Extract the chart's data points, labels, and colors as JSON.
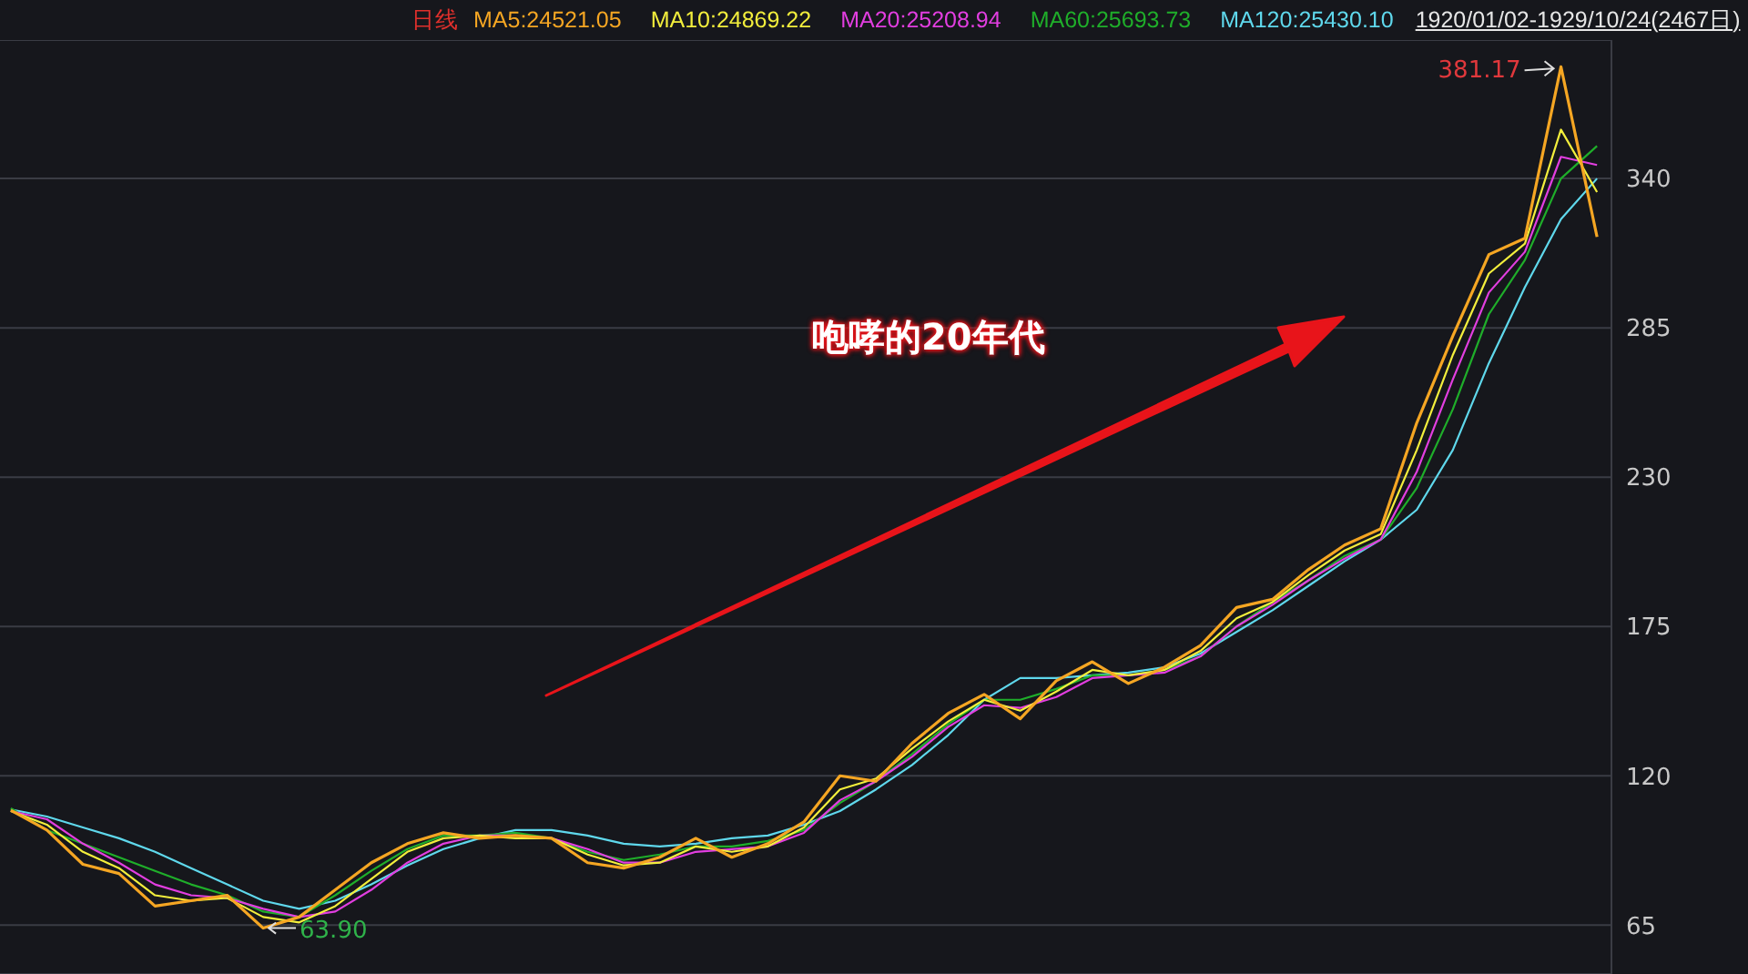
{
  "chart_data": {
    "type": "line",
    "categories": [
      null,
      null,
      null,
      null,
      null,
      null,
      null,
      null,
      null,
      null,
      null,
      null,
      null,
      null,
      null,
      null,
      null,
      null,
      null,
      null,
      null,
      null,
      null,
      null,
      null,
      null,
      null,
      null,
      null,
      null,
      null,
      null,
      null,
      null,
      null,
      null,
      null,
      null,
      null,
      null,
      null,
      null,
      null,
      null,
      null
    ],
    "series": [
      {
        "name": "MA120:25430.10",
        "color": "#5fd8ec",
        "values": [
          107.6,
          105,
          101,
          97,
          92,
          86,
          80,
          74,
          71,
          74,
          80,
          87,
          93,
          97,
          100,
          100,
          98,
          95,
          94,
          95,
          97,
          98,
          102,
          107,
          115,
          124,
          135,
          148,
          156,
          156,
          157,
          158,
          160,
          165,
          173,
          181,
          190,
          199,
          207,
          218,
          240,
          272,
          300,
          325,
          340
        ]
      },
      {
        "name": "MA60:25693.73",
        "color": "#1fae2a",
        "values": [
          108,
          100,
          95,
          90,
          85,
          80,
          76,
          70,
          68,
          76,
          85,
          93,
          98,
          98,
          99,
          97,
          92,
          89,
          91,
          94,
          94,
          96,
          100,
          110,
          118,
          128,
          139,
          148,
          148,
          152,
          157,
          157,
          159,
          164,
          175,
          184,
          192,
          201,
          207,
          226,
          255,
          290,
          310,
          340,
          352
        ]
      },
      {
        "name": "MA20:25208.94",
        "color": "#e23ee0",
        "values": [
          107,
          104,
          95,
          88,
          80,
          76,
          75,
          71,
          68,
          70,
          78,
          88,
          95,
          98,
          98,
          97,
          93,
          88,
          88,
          92,
          93,
          94,
          99,
          111,
          118,
          127,
          138,
          146,
          145,
          149,
          156,
          157,
          158,
          164,
          175,
          183,
          192,
          200,
          207,
          232,
          266,
          298,
          313,
          348,
          345
        ]
      },
      {
        "name": "MA10:24869.22",
        "color": "#f2ee3c",
        "values": [
          107,
          102,
          92,
          86,
          76,
          74,
          75,
          68,
          66,
          72,
          82,
          92,
          97,
          98,
          97,
          97,
          91,
          87,
          88,
          94,
          92,
          94,
          101,
          115,
          119,
          130,
          140,
          148,
          144,
          151,
          159,
          157,
          159,
          166,
          178,
          184,
          194,
          203,
          209,
          240,
          275,
          305,
          316,
          358,
          335
        ]
      },
      {
        "name": "MA5:24521.05",
        "color": "#f5a623",
        "values": [
          107.3,
          100,
          87.4,
          84,
          72,
          74,
          76,
          63.9,
          68,
          78,
          88,
          95,
          99,
          97,
          98,
          97,
          88,
          86,
          90,
          97,
          90,
          95,
          103,
          120,
          118,
          132,
          143,
          150,
          141,
          155,
          162,
          154,
          160,
          168,
          182,
          185,
          196,
          205,
          211,
          250,
          282,
          312,
          318,
          381.17,
          318.5
        ]
      }
    ],
    "ylim": [
      47,
      391
    ],
    "yticks": [
      65,
      120,
      175,
      230,
      285,
      340
    ],
    "grid": "y",
    "legend": "top",
    "tick_labels": "y",
    "marker": "none",
    "line_style": "solid",
    "annotations": [
      "日线",
      "1920/01/02-1929/10/24(2467日)",
      {
        "text": "咆哮的20年代"
      },
      "381.17",
      "63.90"
    ]
  }
}
